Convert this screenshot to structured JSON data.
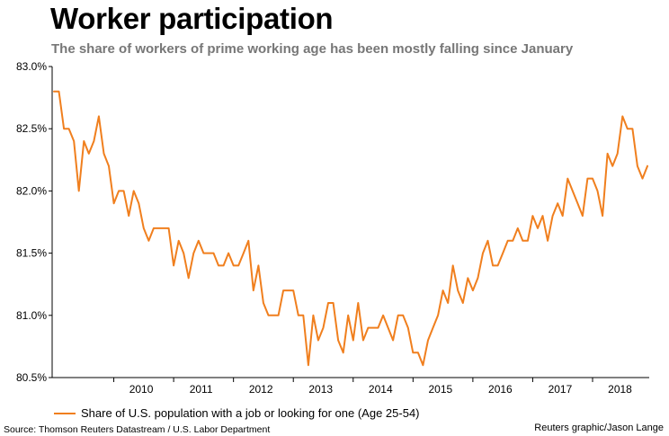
{
  "title": "Worker participation",
  "subtitle": "The share of workers of prime working age has been mostly falling since January",
  "source": "Source: Thomson Reuters Datastream / U.S. Labor Department",
  "credit": "Reuters graphic/Jason Lange",
  "colors": {
    "line": "#f07f1e",
    "axis": "#000000"
  },
  "chart_data": {
    "type": "line",
    "title": "Worker participation",
    "subtitle": "The share of workers of prime working age has been mostly falling since January",
    "xlabel": "",
    "ylabel": "",
    "ylim": [
      80.5,
      83.0
    ],
    "xlim": [
      "2009-01",
      "2018-12"
    ],
    "grid": false,
    "legend_position": "bottom-left",
    "y_ticks": [
      "83.0%",
      "82.5%",
      "82.0%",
      "81.5%",
      "81.0%",
      "80.5%"
    ],
    "x_ticks": [
      "2010",
      "2011",
      "2012",
      "2013",
      "2014",
      "2015",
      "2016",
      "2017",
      "2018"
    ],
    "series": [
      {
        "name": "Share of U.S. population with a job or looking for one (Age 25-54)",
        "start": "2009-01",
        "frequency": "monthly",
        "values": [
          82.8,
          82.8,
          82.5,
          82.5,
          82.4,
          82.0,
          82.4,
          82.3,
          82.4,
          82.6,
          82.3,
          82.2,
          81.9,
          82.0,
          82.0,
          81.8,
          82.0,
          81.9,
          81.7,
          81.6,
          81.7,
          81.7,
          81.7,
          81.7,
          81.4,
          81.6,
          81.5,
          81.3,
          81.5,
          81.6,
          81.5,
          81.5,
          81.5,
          81.4,
          81.4,
          81.5,
          81.4,
          81.4,
          81.5,
          81.6,
          81.2,
          81.4,
          81.1,
          81.0,
          81.0,
          81.0,
          81.2,
          81.2,
          81.2,
          81.0,
          81.0,
          80.6,
          81.0,
          80.8,
          80.9,
          81.1,
          81.1,
          80.8,
          80.7,
          81.0,
          80.8,
          81.1,
          80.8,
          80.9,
          80.9,
          80.9,
          81.0,
          80.9,
          80.8,
          81.0,
          81.0,
          80.9,
          80.7,
          80.7,
          80.6,
          80.8,
          80.9,
          81.0,
          81.2,
          81.1,
          81.4,
          81.2,
          81.1,
          81.3,
          81.2,
          81.3,
          81.5,
          81.6,
          81.4,
          81.4,
          81.5,
          81.6,
          81.6,
          81.7,
          81.6,
          81.6,
          81.8,
          81.7,
          81.8,
          81.6,
          81.8,
          81.9,
          81.8,
          82.1,
          82.0,
          81.9,
          81.8,
          82.1,
          82.1,
          82.0,
          81.8,
          82.3,
          82.2,
          82.3,
          82.6,
          82.5,
          82.5,
          82.2,
          82.1,
          82.2
        ]
      }
    ]
  }
}
